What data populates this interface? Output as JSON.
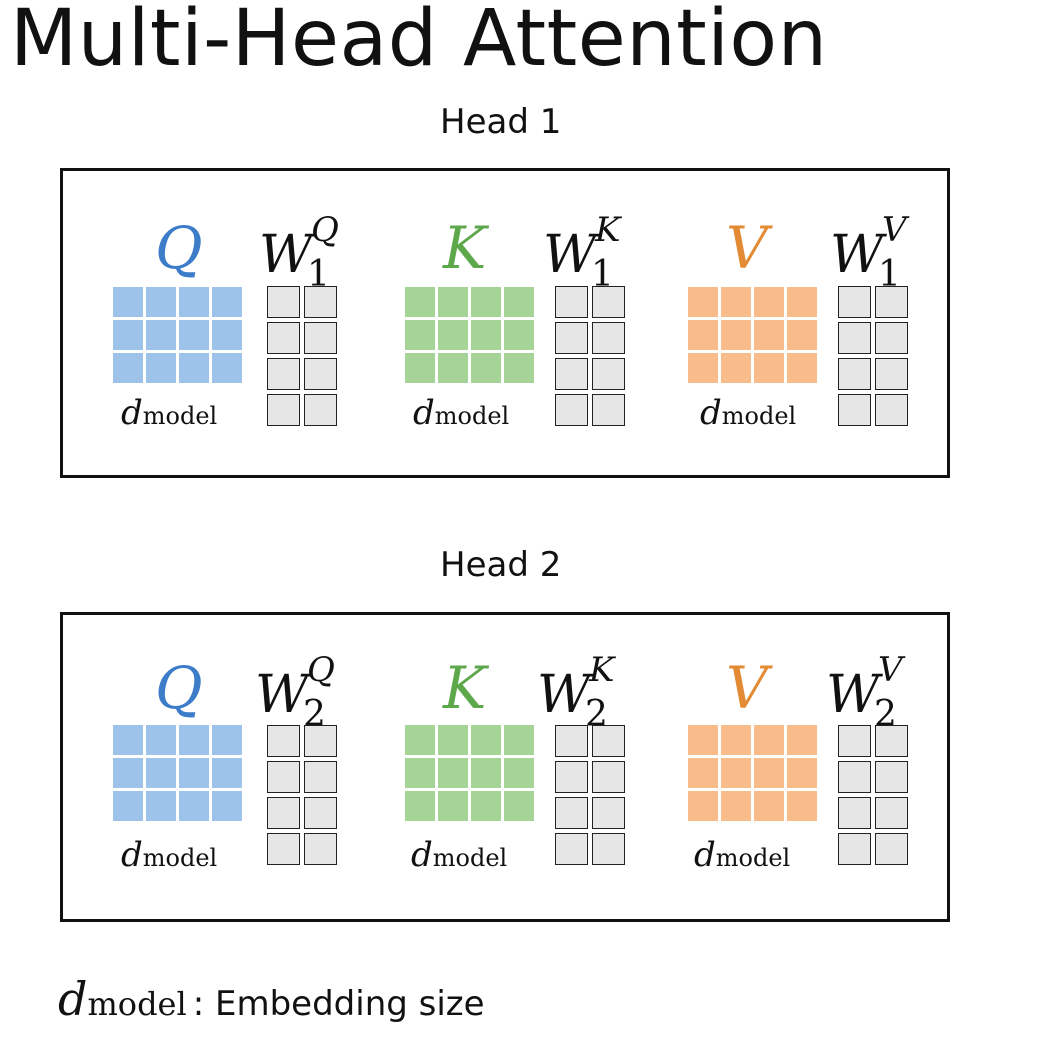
{
  "title": "Multi-Head Attention",
  "colors": {
    "q": "#9dc3ea",
    "k": "#a6d396",
    "v": "#f7bc8a",
    "q_text": "#3d7cc9",
    "k_text": "#5ea84c",
    "v_text": "#e38a34"
  },
  "heads": [
    {
      "label": "Head 1",
      "q": "Q",
      "k": "K",
      "v": "V",
      "w": "W",
      "index": "1",
      "wq_sup": "Q",
      "wk_sup": "K",
      "wv_sup": "V",
      "d": "d",
      "model": "model"
    },
    {
      "label": "Head 2",
      "q": "Q",
      "k": "K",
      "v": "V",
      "w": "W",
      "index": "2",
      "wq_sup": "Q",
      "wk_sup": "K",
      "wv_sup": "V",
      "d": "d",
      "model": "model"
    }
  ],
  "footer": {
    "d": "d",
    "model": "model",
    "text": ": Embedding size"
  }
}
